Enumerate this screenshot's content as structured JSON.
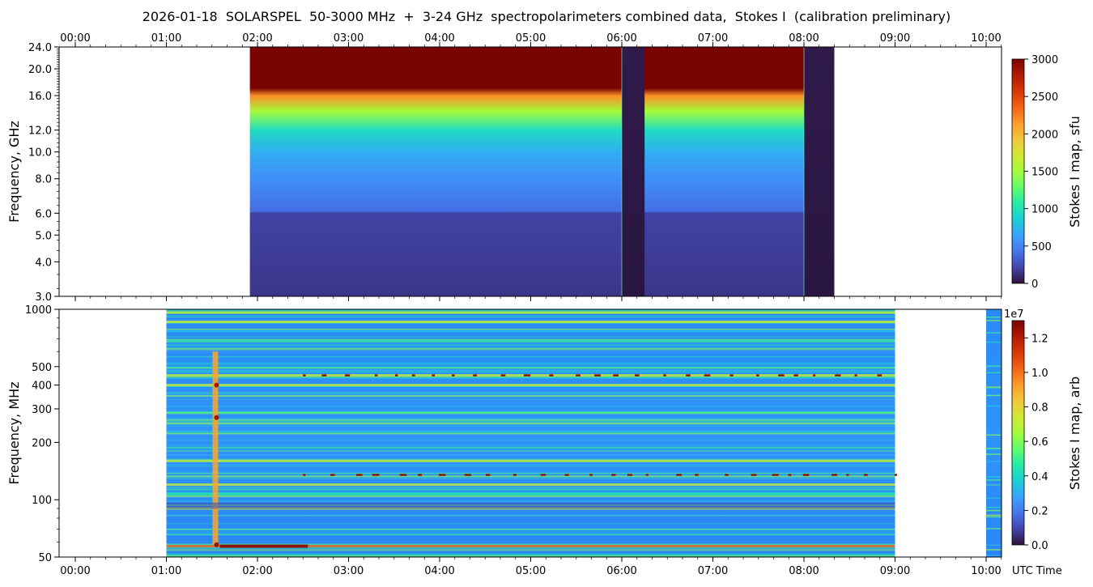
{
  "title": "2026-01-18  SOLARSPEL  50-3000 MHz  +  3-24 GHz  spectropolarimeters combined data,  Stokes I  (calibration preliminary)",
  "time_labels": [
    "00:00",
    "01:00",
    "02:00",
    "03:00",
    "04:00",
    "05:00",
    "06:00",
    "07:00",
    "08:00",
    "09:00",
    "10:00"
  ],
  "time_axis_label": "UTC Time",
  "colormap": [
    "#30123b",
    "#4145ab",
    "#4675ed",
    "#39a2fc",
    "#1bcfd4",
    "#24eca6",
    "#61fc6c",
    "#a4fc3b",
    "#d1e834",
    "#f3c63a",
    "#fe9b2d",
    "#f36315",
    "#d93806",
    "#b11901",
    "#7a0403"
  ],
  "chart_data": [
    {
      "type": "heatmap",
      "name": "GHz spectrogram",
      "ylabel": "Frequency, GHz",
      "y_scale": "log",
      "ylim": [
        3.0,
        24.0
      ],
      "xlim": [
        "00:00",
        "10:15"
      ],
      "y_ticks": [
        "3.0",
        "4.0",
        "5.0",
        "6.0",
        "8.0",
        "10.0",
        "12.0",
        "16.0",
        "20.0",
        "24.0"
      ],
      "colorbar": {
        "label": "Stokes I map, sfu",
        "range": [
          0,
          3000
        ],
        "ticks": [
          "0",
          "500",
          "1000",
          "1500",
          "2000",
          "2500",
          "3000"
        ]
      },
      "data_time_range": [
        "01:55",
        "08:20"
      ],
      "gaps_low_signal": [
        [
          "06:00",
          "06:15"
        ],
        [
          "08:00",
          "08:20"
        ]
      ],
      "profile_by_frequency_ghz": [
        {
          "f": 3.0,
          "sfu": 150
        },
        {
          "f": 6.0,
          "sfu": 200
        },
        {
          "f": 6.1,
          "sfu": 400
        },
        {
          "f": 8.0,
          "sfu": 550
        },
        {
          "f": 10.0,
          "sfu": 700
        },
        {
          "f": 12.0,
          "sfu": 950
        },
        {
          "f": 14.0,
          "sfu": 1500
        },
        {
          "f": 16.0,
          "sfu": 2200
        },
        {
          "f": 17.0,
          "sfu": 3000
        },
        {
          "f": 24.0,
          "sfu": 3000
        }
      ]
    },
    {
      "type": "heatmap",
      "name": "MHz spectrogram",
      "ylabel": "Frequency, MHz",
      "y_scale": "log",
      "ylim": [
        50,
        1000
      ],
      "xlim": [
        "00:00",
        "10:15"
      ],
      "y_ticks": [
        "50",
        "100",
        "200",
        "300",
        "400",
        "500",
        "1000"
      ],
      "colorbar": {
        "label": "Stokes I map, arb",
        "scale_label": "1e7",
        "range": [
          0.0,
          1.3
        ],
        "ticks": [
          "0.0",
          "0.2",
          "0.4",
          "0.6",
          "0.8",
          "1.0",
          "1.2"
        ]
      },
      "data_time_ranges": [
        [
          "01:00",
          "09:00"
        ],
        [
          "10:00",
          "10:15"
        ]
      ],
      "background_level": 0.35,
      "burst_start_time": "01:32",
      "bright_bands_mhz": [
        57,
        90,
        120,
        160,
        400,
        450,
        860,
        960
      ]
    }
  ]
}
